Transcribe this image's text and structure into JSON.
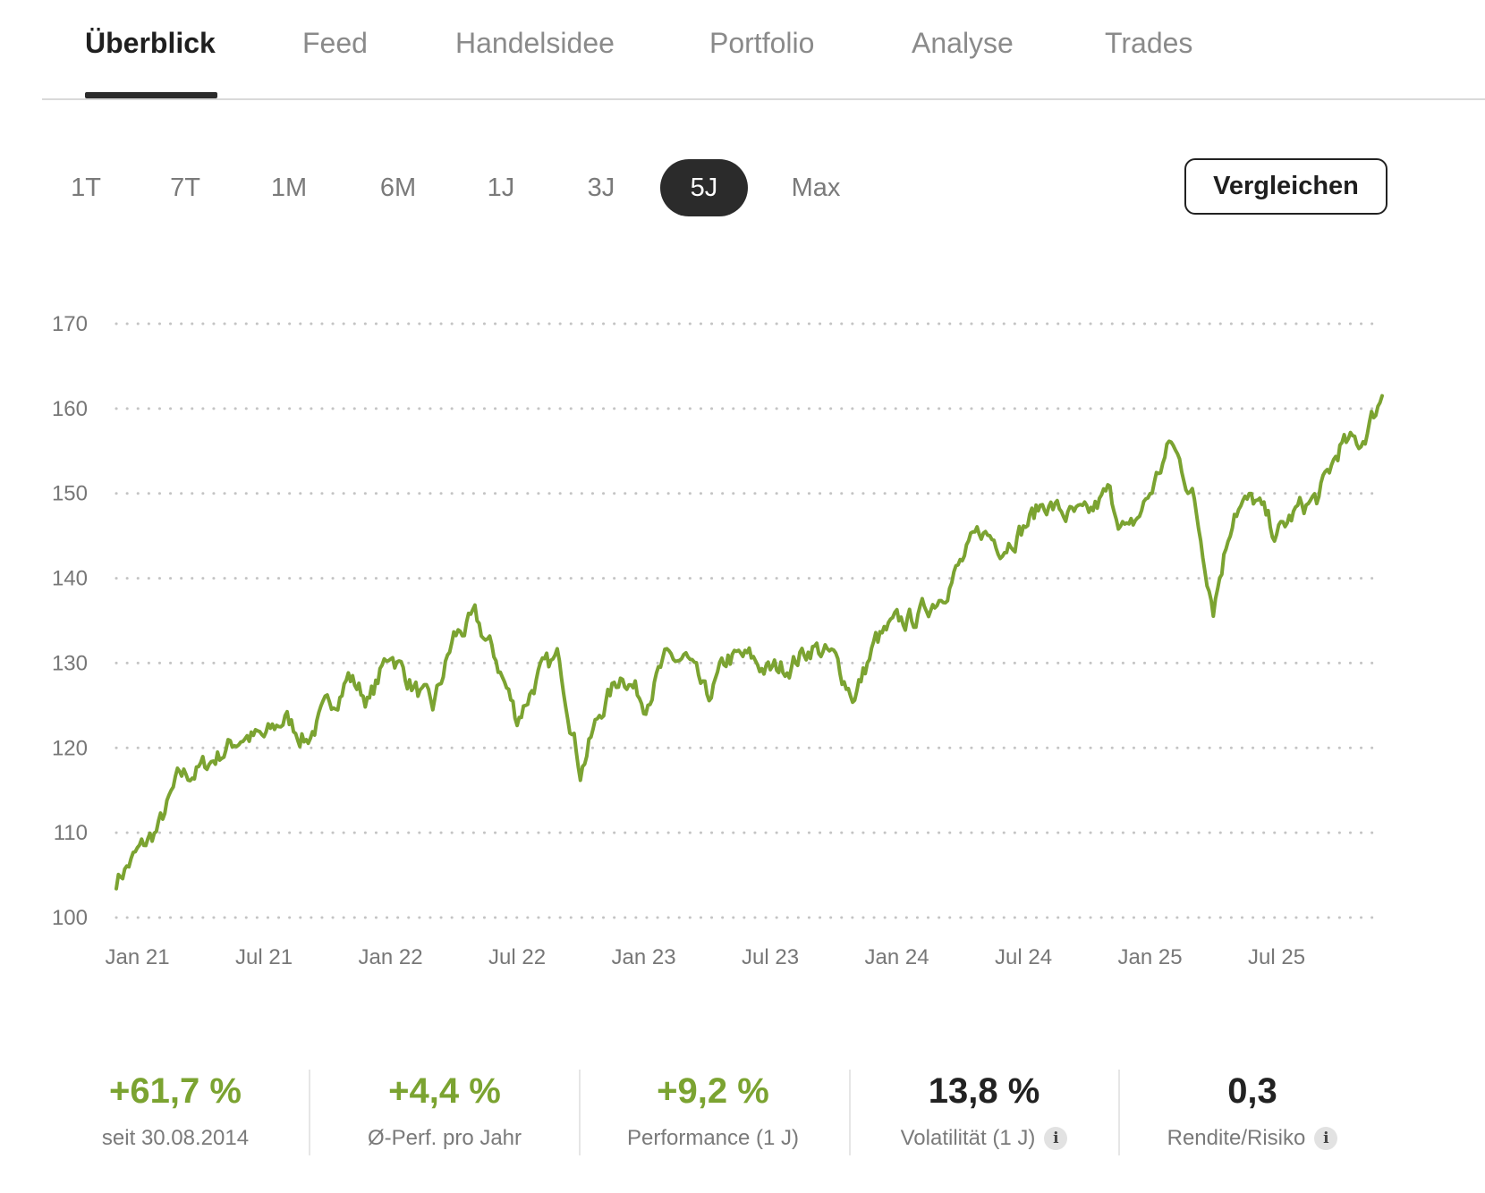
{
  "tabs": [
    {
      "label": "Überblick",
      "active": true
    },
    {
      "label": "Feed",
      "active": false
    },
    {
      "label": "Handelsidee",
      "active": false
    },
    {
      "label": "Portfolio",
      "active": false
    },
    {
      "label": "Analyse",
      "active": false
    },
    {
      "label": "Trades",
      "active": false
    }
  ],
  "ranges": [
    {
      "label": "1T",
      "active": false
    },
    {
      "label": "7T",
      "active": false
    },
    {
      "label": "1M",
      "active": false
    },
    {
      "label": "6M",
      "active": false
    },
    {
      "label": "1J",
      "active": false
    },
    {
      "label": "3J",
      "active": false
    },
    {
      "label": "5J",
      "active": true
    },
    {
      "label": "Max",
      "active": false
    }
  ],
  "compare_label": "Vergleichen",
  "colors": {
    "line": "#7ba331",
    "accent_green": "#7ba331",
    "grid": "#c4c4c4"
  },
  "chart_data": {
    "type": "line",
    "ylim": [
      100,
      170
    ],
    "yticks": [
      "100",
      "110",
      "120",
      "130",
      "140",
      "150",
      "160",
      "170"
    ],
    "xticks": [
      "Jan 21",
      "Jul 21",
      "Jan 22",
      "Jul 22",
      "Jan 23",
      "Jul 23",
      "Jan 24",
      "Jul 24",
      "Jan 25",
      "Jul 25"
    ],
    "grid": true,
    "series": [
      {
        "x": [
          "2020-12",
          "2021-01",
          "2021-02",
          "2021-03",
          "2021-04",
          "2021-05",
          "2021-06",
          "2021-07",
          "2021-08",
          "2021-09",
          "2021-10",
          "2021-11",
          "2021-12",
          "2022-01",
          "2022-02",
          "2022-03",
          "2022-04",
          "2022-05",
          "2022-06",
          "2022-07",
          "2022-08",
          "2022-09",
          "2022-10",
          "2022-11",
          "2022-12",
          "2023-01",
          "2023-02",
          "2023-03",
          "2023-04",
          "2023-05",
          "2023-06",
          "2023-07",
          "2023-08",
          "2023-09",
          "2023-10",
          "2023-11",
          "2023-12",
          "2024-01",
          "2024-02",
          "2024-03",
          "2024-04",
          "2024-05",
          "2024-06",
          "2024-07",
          "2024-08",
          "2024-09",
          "2024-10",
          "2024-11",
          "2024-12",
          "2025-01",
          "2025-02",
          "2025-03",
          "2025-04",
          "2025-05",
          "2025-06",
          "2025-07",
          "2025-08",
          "2025-09",
          "2025-10",
          "2025-11",
          "2025-12"
        ],
        "values": [
          104.5,
          107.5,
          110.5,
          116.5,
          117.5,
          119.5,
          121.5,
          121.0,
          123.5,
          121.0,
          124.5,
          128.5,
          125.5,
          131.5,
          127.5,
          124.5,
          133.0,
          135.0,
          130.5,
          123.5,
          128.5,
          130.5,
          117.5,
          124.5,
          129.0,
          125.5,
          130.0,
          130.5,
          125.5,
          130.5,
          130.5,
          129.0,
          130.0,
          132.0,
          130.5,
          126.0,
          132.5,
          134.5,
          135.5,
          138.0,
          141.5,
          145.5,
          144.0,
          146.0,
          149.0,
          147.5,
          147.0,
          150.0,
          145.0,
          150.0,
          156.0,
          150.0,
          137.0,
          148.5,
          149.0,
          145.0,
          148.0,
          149.5,
          155.5,
          156.0,
          161.5
        ]
      }
    ]
  },
  "stats": [
    {
      "value": "+61,7 %",
      "label": "seit 30.08.2014",
      "green": true,
      "info": false
    },
    {
      "value": "+4,4 %",
      "label": "Ø-Perf. pro Jahr",
      "green": true,
      "info": false
    },
    {
      "value": "+9,2 %",
      "label": "Performance (1 J)",
      "green": true,
      "info": false
    },
    {
      "value": "13,8 %",
      "label": "Volatilität (1 J)",
      "green": false,
      "info": true,
      "icon": "info-icon"
    },
    {
      "value": "0,3",
      "label": "Rendite/Risiko",
      "green": false,
      "info": true,
      "icon": "info-icon"
    }
  ]
}
